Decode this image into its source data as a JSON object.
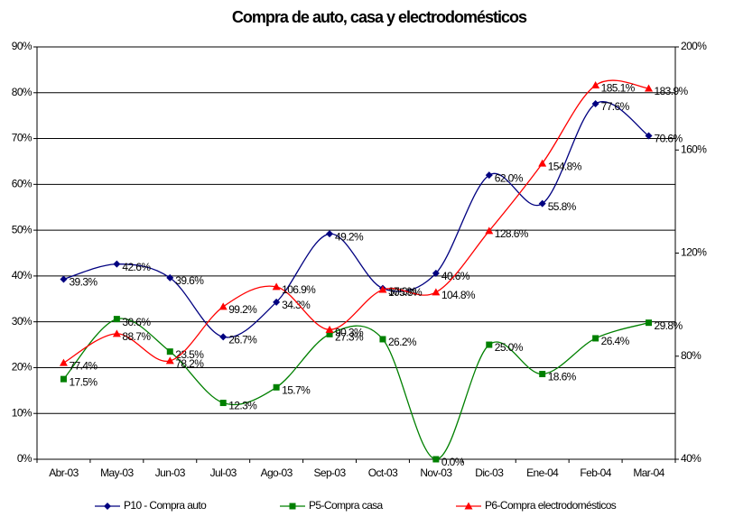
{
  "chart_data": {
    "type": "line",
    "title": "Compra de auto, casa y electrodomésticos",
    "categories": [
      "Abr-03",
      "May-03",
      "Jun-03",
      "Jul-03",
      "Ago-03",
      "Sep-03",
      "Oct-03",
      "Nov-03",
      "Dic-03",
      "Ene-04",
      "Feb-04",
      "Mar-04"
    ],
    "ylim": [
      0,
      90
    ],
    "yticks": [
      {
        "value": 0,
        "label": "0%"
      },
      {
        "value": 10,
        "label": "10%"
      },
      {
        "value": 20,
        "label": "20%"
      },
      {
        "value": 30,
        "label": "30%"
      },
      {
        "value": 40,
        "label": "40%"
      },
      {
        "value": 50,
        "label": "50%"
      },
      {
        "value": 60,
        "label": "60%"
      },
      {
        "value": 70,
        "label": "70%"
      },
      {
        "value": 80,
        "label": "80%"
      },
      {
        "value": 90,
        "label": "90%"
      }
    ],
    "y2lim": [
      40,
      200
    ],
    "y2ticks": [
      {
        "value": 40,
        "label": "40%"
      },
      {
        "value": 80,
        "label": "80%"
      },
      {
        "value": 120,
        "label": "120%"
      },
      {
        "value": 160,
        "label": "160%"
      },
      {
        "value": 200,
        "label": "200%"
      }
    ],
    "grid": true,
    "legend": "bottom",
    "series": [
      {
        "name": "P10 - Compra auto",
        "color": "#000080",
        "marker": "diamond",
        "values": [
          39.3,
          42.6,
          39.6,
          26.7,
          34.3,
          49.2,
          37.3,
          40.6,
          62.0,
          55.8,
          77.6,
          70.6
        ],
        "value_labels": [
          "39.3%",
          "42.6%",
          "39.6%",
          "26.7%",
          "34.3%",
          "49.2%",
          "37.3%",
          "40.6%",
          "62.0%",
          "55.8%",
          "77.6%",
          "70.6%"
        ]
      },
      {
        "name": "P5-Compra casa",
        "color": "#008000",
        "marker": "square",
        "values": [
          17.5,
          30.6,
          23.5,
          12.3,
          15.7,
          27.3,
          26.2,
          0.0,
          25.0,
          18.6,
          26.4,
          29.8
        ],
        "value_labels": [
          "17.5%",
          "30.6%",
          "23.5%",
          "12.3%",
          "15.7%",
          "27.3%",
          "26.2%",
          "0.0%",
          "25.0%",
          "18.6%",
          "26.4%",
          "29.8%"
        ]
      },
      {
        "name": "P6-Compra electrodomésticos",
        "color": "#ff0000",
        "marker": "triangle",
        "axis": "y2",
        "values": [
          77.4,
          88.7,
          78.2,
          99.2,
          106.9,
          90.3,
          105.8,
          104.8,
          128.6,
          154.8,
          185.1,
          183.9
        ],
        "value_labels": [
          "77.4%",
          "88.7%",
          "78.2%",
          "99.2%",
          "106.9%",
          "90.3%",
          "105.8%",
          "104.8%",
          "128.6%",
          "154.8%",
          "185.1%",
          "183.9%"
        ]
      }
    ]
  }
}
